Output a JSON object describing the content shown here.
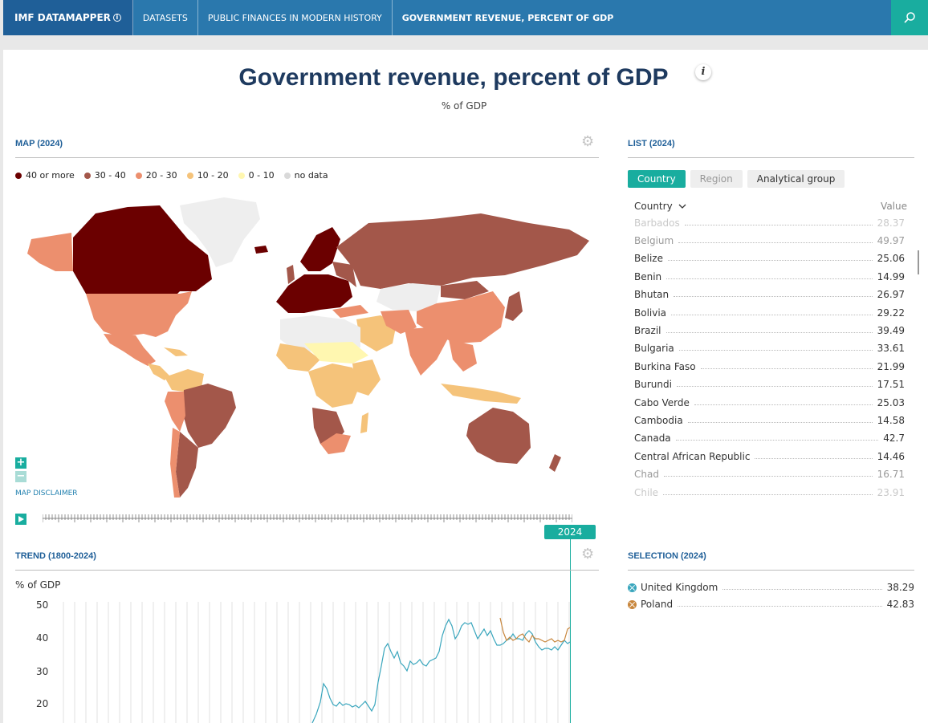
{
  "nav": {
    "brand": "IMF DATAMAPPER",
    "items": [
      "DATASETS",
      "PUBLIC FINANCES IN MODERN HISTORY",
      "GOVERNMENT REVENUE, PERCENT OF GDP"
    ]
  },
  "page": {
    "title": "Government revenue, percent of GDP",
    "subtitle": "% of GDP"
  },
  "map": {
    "heading": "MAP (2024)",
    "legend": [
      {
        "label": "40 or more",
        "color": "#6b0000"
      },
      {
        "label": "30 - 40",
        "color": "#a3574a"
      },
      {
        "label": "20 - 30",
        "color": "#ec8f6e"
      },
      {
        "label": "10 - 20",
        "color": "#f5c37a"
      },
      {
        "label": "0 - 10",
        "color": "#fff7b0"
      },
      {
        "label": "no data",
        "color": "#d9d9d9"
      }
    ],
    "disclaimer": "MAP DISCLAIMER",
    "zoom_in": "+",
    "zoom_out": "−"
  },
  "timeline": {
    "year": "2024"
  },
  "list": {
    "heading": "LIST (2024)",
    "tabs": [
      "Country",
      "Region",
      "Analytical group"
    ],
    "col_country": "Country",
    "col_value": "Value",
    "rows": [
      {
        "name": "Barbados",
        "value": "28.37"
      },
      {
        "name": "Belgium",
        "value": "49.97"
      },
      {
        "name": "Belize",
        "value": "25.06"
      },
      {
        "name": "Benin",
        "value": "14.99"
      },
      {
        "name": "Bhutan",
        "value": "26.97"
      },
      {
        "name": "Bolivia",
        "value": "29.22"
      },
      {
        "name": "Brazil",
        "value": "39.49"
      },
      {
        "name": "Bulgaria",
        "value": "33.61"
      },
      {
        "name": "Burkina Faso",
        "value": "21.99"
      },
      {
        "name": "Burundi",
        "value": "17.51"
      },
      {
        "name": "Cabo Verde",
        "value": "25.03"
      },
      {
        "name": "Cambodia",
        "value": "14.58"
      },
      {
        "name": "Canada",
        "value": "42.7"
      },
      {
        "name": "Central African Republic",
        "value": "14.46"
      },
      {
        "name": "Chad",
        "value": "16.71"
      },
      {
        "name": "Chile",
        "value": "23.91"
      }
    ]
  },
  "trend": {
    "heading": "TREND (1800-2024)",
    "ylabel": "% of GDP",
    "ticks": [
      "50",
      "40",
      "30",
      "20"
    ]
  },
  "selection": {
    "heading": "SELECTION (2024)",
    "items": [
      {
        "name": "United Kingdom",
        "value": "38.29",
        "color": "#3aa6bd"
      },
      {
        "name": "Poland",
        "value": "42.83",
        "color": "#c8863c"
      }
    ]
  }
}
